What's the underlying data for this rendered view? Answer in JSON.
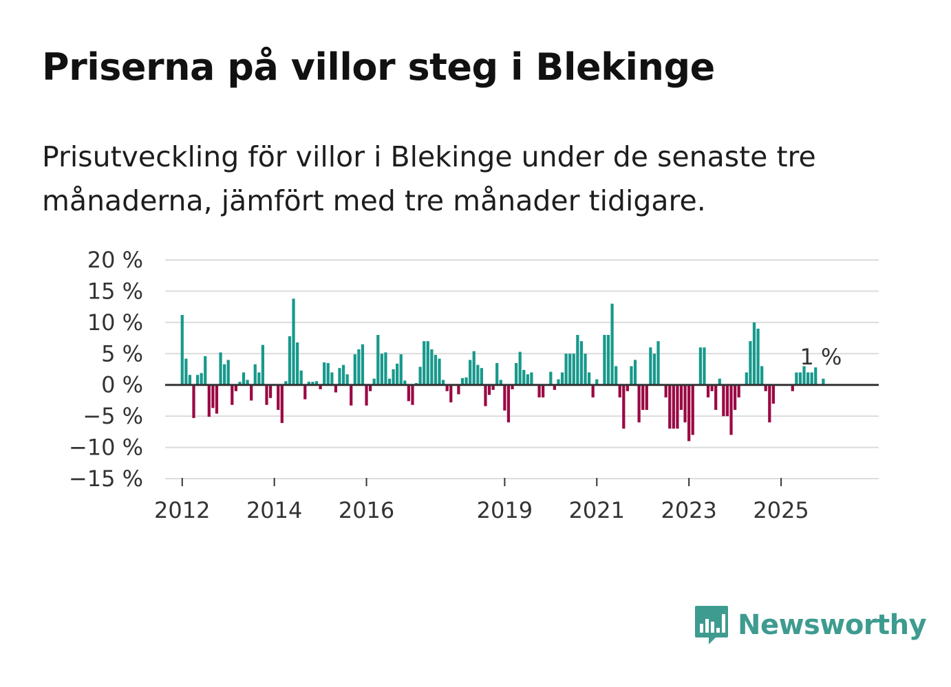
{
  "title": "Priserna på villor steg i Blekinge",
  "subtitle": "Prisutveckling för villor i Blekinge under de senaste tre månaderna, jämfört med tre månader tidigare.",
  "brand": {
    "name": "Newsworthy",
    "color": "#3e9b8f",
    "icon": "bar-chart-speech-bubble-icon"
  },
  "colors": {
    "positive": "#17998c",
    "negative": "#9a0943",
    "grid": "#dcdcdc",
    "zero_line": "#333333"
  },
  "chart_data": {
    "type": "bar",
    "title": "Priserna på villor steg i Blekinge",
    "xlabel": "",
    "ylabel": "",
    "ylim": [
      -15,
      20
    ],
    "y_ticks": [
      20,
      15,
      10,
      5,
      0,
      -5,
      -10,
      -15
    ],
    "y_tick_labels": [
      "20 %",
      "15 %",
      "10 %",
      "5 %",
      "0 %",
      "−5 %",
      "−10 %",
      "−15 %"
    ],
    "x_ticks": [
      2012,
      2014,
      2016,
      2019,
      2021,
      2023,
      2025
    ],
    "x_tick_labels": [
      "2012",
      "2014",
      "2016",
      "2019",
      "2021",
      "2023",
      "2025"
    ],
    "x_start": 2012.0,
    "x_step": 0.08333,
    "values": [
      11.2,
      4.2,
      1.6,
      -5.3,
      1.6,
      1.9,
      4.6,
      -5.1,
      -3.7,
      -4.6,
      5.2,
      3.3,
      4.0,
      -3.2,
      -1.0,
      0.5,
      2.0,
      0.8,
      -2.5,
      3.3,
      2.0,
      6.4,
      -3.2,
      -2.1,
      0.0,
      -4.0,
      -6.1,
      0.6,
      7.8,
      13.8,
      6.8,
      2.3,
      -2.3,
      0.5,
      0.5,
      0.6,
      -0.7,
      3.6,
      3.5,
      2.0,
      -1.2,
      2.7,
      3.2,
      1.7,
      -3.3,
      4.9,
      5.7,
      6.5,
      -3.3,
      -1.0,
      1.0,
      8.0,
      5.0,
      5.2,
      1.0,
      2.5,
      3.4,
      4.9,
      0.7,
      -2.6,
      -3.2,
      0.3,
      2.9,
      7.0,
      7.0,
      5.7,
      4.8,
      4.2,
      0.8,
      -1.0,
      -2.8,
      0.0,
      -1.5,
      1.1,
      1.2,
      4.0,
      5.4,
      3.2,
      2.7,
      -3.4,
      -1.6,
      -0.8,
      3.5,
      0.8,
      -4.1,
      -6.0,
      -0.7,
      3.5,
      5.3,
      2.4,
      1.7,
      2.0,
      0.0,
      -2.0,
      -2.0,
      0.0,
      2.1,
      -0.8,
      0.9,
      2.0,
      5.0,
      5.0,
      5.0,
      8.0,
      7.0,
      5.0,
      2.0,
      -2.0,
      0.9,
      0.0,
      8.0,
      8.0,
      13.0,
      3.0,
      -2.0,
      -7.0,
      -1.0,
      3.0,
      4.0,
      -6.0,
      -4.0,
      -4.0,
      6.0,
      5.0,
      7.0,
      0.0,
      -2.0,
      -7.0,
      -7.0,
      -7.0,
      -4.0,
      -6.0,
      -9.0,
      -8.0,
      0.0,
      6.0,
      6.0,
      -2.0,
      -1.0,
      -4.0,
      1.0,
      -5.0,
      -5.0,
      -8.0,
      -4.0,
      -2.0,
      0.0,
      2.0,
      7.0,
      10.0,
      9.0,
      3.0,
      -1.0,
      -6.0,
      -3.0,
      0.0,
      0.0,
      0.0,
      0.0,
      -1.0,
      2.0,
      2.0,
      3.0,
      2.0,
      2.0,
      2.8,
      0.0,
      1.0
    ],
    "annotation": {
      "label": "1 %",
      "attached_to": "last_value"
    }
  }
}
